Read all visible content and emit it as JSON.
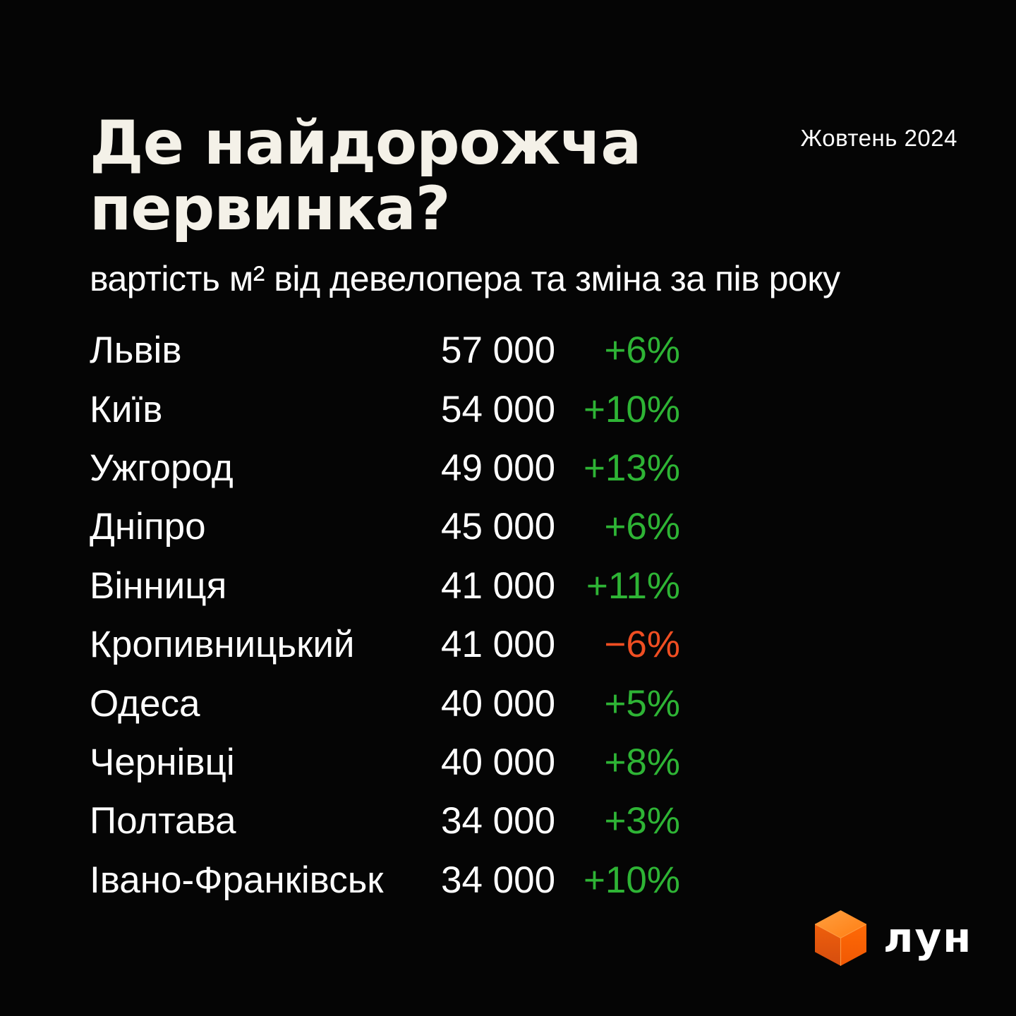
{
  "header": {
    "title_line1": "Де найдорожча",
    "title_line2": "первинка?",
    "date_label": "Жовтень 2024",
    "subtitle": "вартість м² від девелопера та зміна за пів року"
  },
  "table": {
    "rows": [
      {
        "city": "Львів",
        "price": "57 000",
        "change": "+6%",
        "direction": "up"
      },
      {
        "city": "Київ",
        "price": "54 000",
        "change": "+10%",
        "direction": "up"
      },
      {
        "city": "Ужгород",
        "price": "49 000",
        "change": "+13%",
        "direction": "up"
      },
      {
        "city": "Дніпро",
        "price": "45 000",
        "change": "+6%",
        "direction": "up"
      },
      {
        "city": "Вінниця",
        "price": "41 000",
        "change": "+11%",
        "direction": "up"
      },
      {
        "city": "Кропивницький",
        "price": "41 000",
        "change": "−6%",
        "direction": "down"
      },
      {
        "city": "Одеса",
        "price": "40 000",
        "change": "+5%",
        "direction": "up"
      },
      {
        "city": "Чернівці",
        "price": "40 000",
        "change": "+8%",
        "direction": "up"
      },
      {
        "city": "Полтава",
        "price": "34 000",
        "change": "+3%",
        "direction": "up"
      },
      {
        "city": "Івано-Франківськ",
        "price": "34 000",
        "change": "+10%",
        "direction": "up"
      }
    ]
  },
  "colors": {
    "up": "#2eb435",
    "down": "#f04e22",
    "title": "#f4f1e8",
    "text": "#ffffff",
    "background": "#050505",
    "cube_top": "#ff8a26",
    "cube_left": "#e05509",
    "cube_right": "#fb6207",
    "cube_edge": "#ff9d45"
  },
  "logo": {
    "text": "лун",
    "icon": "lun-cube-icon"
  },
  "chart_data": {
    "type": "table",
    "title": "Де найдорожча первинка?",
    "subtitle": "вартість м² від девелопера та зміна за пів року",
    "period": "Жовтень 2024",
    "categories": [
      "Львів",
      "Київ",
      "Ужгород",
      "Дніпро",
      "Вінниця",
      "Кропивницький",
      "Одеса",
      "Чернівці",
      "Полтава",
      "Івано-Франківськ"
    ],
    "series": [
      {
        "name": "вартість м²",
        "values": [
          57000,
          54000,
          49000,
          45000,
          41000,
          41000,
          40000,
          40000,
          34000,
          34000
        ]
      },
      {
        "name": "зміна за пів року, %",
        "values": [
          6,
          10,
          13,
          6,
          11,
          -6,
          5,
          8,
          3,
          10
        ]
      }
    ]
  }
}
